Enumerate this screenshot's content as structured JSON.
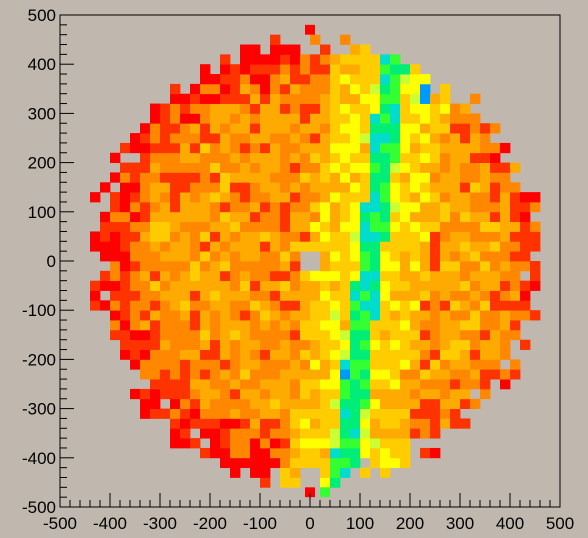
{
  "background_color": "#c0b8ae",
  "chart_data": {
    "type": "heatmap",
    "title": "",
    "xlabel": "",
    "ylabel": "",
    "xlim": [
      -500,
      500
    ],
    "ylim": [
      -500,
      500
    ],
    "bin_size": 20,
    "grid": false,
    "legend": "none",
    "x_ticks": [
      "-500",
      "-400",
      "-300",
      "-200",
      "-100",
      "0",
      "100",
      "200",
      "300",
      "400",
      "500"
    ],
    "y_ticks": [
      "-500",
      "-400",
      "-300",
      "-200",
      "-100",
      "0",
      "100",
      "200",
      "300",
      "400",
      "500"
    ],
    "hole": {
      "center": [
        0,
        0
      ],
      "radius": 18
    },
    "colors": {
      "red": "#ff0000",
      "red_orange": "#ff3300",
      "orange": "#ff8800",
      "amber": "#ffaa00",
      "gold": "#ffcc00",
      "yellow": "#ffff00",
      "yellow_green": "#ccff33",
      "green": "#33ff33",
      "sea_green": "#00ee77",
      "cyan": "#00ddcc",
      "blue": "#0099ff"
    },
    "color_model": {
      "description": "cell colour tiers ordered low to high occupancy",
      "tiers": [
        "red",
        "red_orange",
        "orange",
        "amber",
        "gold",
        "yellow",
        "yellow_green",
        "green",
        "sea_green",
        "cyan",
        "blue"
      ]
    },
    "regions": [
      {
        "shape": "disk",
        "center": [
          10,
          0
        ],
        "radius": 460,
        "base": "orange"
      },
      {
        "shape": "outer_ring",
        "from_radius": 330,
        "to_radius": 460,
        "tier": "red",
        "note": "left/top/bottom rim predominantly red"
      },
      {
        "shape": "band",
        "x_center": 130,
        "x_at_top": 180,
        "x_at_bottom": 60,
        "width": 40,
        "tier": "sea_green",
        "note": "green/cyan diagonal stripe"
      },
      {
        "shape": "band",
        "x_center": 40,
        "width": 120,
        "tier": "yellow",
        "note": "yellow belt alongside the green stripe"
      },
      {
        "shape": "point",
        "x": 230,
        "y": 340,
        "tier": "blue"
      },
      {
        "shape": "point",
        "x": 70,
        "y": -230,
        "tier": "blue"
      },
      {
        "shape": "point",
        "x": -410,
        "y": -210,
        "tier": "cyan"
      }
    ]
  }
}
